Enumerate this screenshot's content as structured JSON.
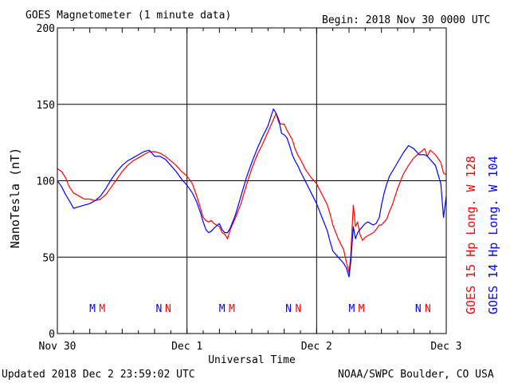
{
  "chart_data": {
    "type": "line",
    "title": "GOES Magnetometer (1 minute data)",
    "begin_label": "Begin:  2018 Nov 30 0000 UTC",
    "ylabel": "NanoTesla (nT)",
    "xlabel": "Universal Time",
    "ylim": [
      0,
      200
    ],
    "y_ticks": [
      0,
      50,
      100,
      150,
      200
    ],
    "xlim_hours": [
      0,
      72
    ],
    "x_ticks": [
      {
        "hour": 0,
        "label": "Nov 30"
      },
      {
        "hour": 24,
        "label": "Dec 1"
      },
      {
        "hour": 48,
        "label": "Dec 2"
      },
      {
        "hour": 72,
        "label": "Dec 3"
      }
    ],
    "grid": true,
    "series": [
      {
        "name": "GOES 15 Hp  Long. W 128",
        "color": "#ff0000",
        "points": [
          [
            0,
            108
          ],
          [
            0.8,
            106
          ],
          [
            1.5,
            102
          ],
          [
            2.2,
            96
          ],
          [
            3,
            92
          ],
          [
            4,
            90
          ],
          [
            5,
            88
          ],
          [
            6,
            88
          ],
          [
            7,
            87
          ],
          [
            8,
            88
          ],
          [
            9,
            91
          ],
          [
            10,
            96
          ],
          [
            11,
            101
          ],
          [
            12,
            106
          ],
          [
            13,
            110
          ],
          [
            14,
            113
          ],
          [
            15,
            115
          ],
          [
            16,
            117
          ],
          [
            17,
            119
          ],
          [
            18,
            119
          ],
          [
            19,
            118
          ],
          [
            20,
            116
          ],
          [
            21,
            113
          ],
          [
            22,
            110
          ],
          [
            23,
            106
          ],
          [
            24,
            103
          ],
          [
            25,
            98
          ],
          [
            25.8,
            90
          ],
          [
            26.5,
            82
          ],
          [
            27,
            76
          ],
          [
            27.5,
            74
          ],
          [
            28,
            73
          ],
          [
            28.5,
            74
          ],
          [
            29,
            72
          ],
          [
            30,
            70
          ],
          [
            30.5,
            66
          ],
          [
            31,
            65
          ],
          [
            31.5,
            62
          ],
          [
            32,
            68
          ],
          [
            33,
            76
          ],
          [
            34,
            85
          ],
          [
            35,
            97
          ],
          [
            36,
            108
          ],
          [
            37,
            117
          ],
          [
            38,
            124
          ],
          [
            39,
            132
          ],
          [
            40,
            140
          ],
          [
            40.5,
            144
          ],
          [
            41,
            138
          ],
          [
            41.5,
            137
          ],
          [
            42,
            137
          ],
          [
            42.5,
            133
          ],
          [
            43,
            130
          ],
          [
            43.5,
            127
          ],
          [
            44,
            121
          ],
          [
            44.5,
            117
          ],
          [
            45,
            114
          ],
          [
            46,
            107
          ],
          [
            47,
            102
          ],
          [
            48,
            98
          ],
          [
            49,
            91
          ],
          [
            50,
            84
          ],
          [
            50.5,
            78
          ],
          [
            51,
            71
          ],
          [
            52,
            62
          ],
          [
            53,
            55
          ],
          [
            53.5,
            47
          ],
          [
            54,
            40
          ],
          [
            54.3,
            50
          ],
          [
            54.8,
            84
          ],
          [
            55.2,
            70
          ],
          [
            55.6,
            73
          ],
          [
            56,
            65
          ],
          [
            56.5,
            61
          ],
          [
            57,
            63
          ],
          [
            57.5,
            64
          ],
          [
            58,
            65
          ],
          [
            58.5,
            66
          ],
          [
            59,
            68
          ],
          [
            59.6,
            71
          ],
          [
            60,
            71
          ],
          [
            60.5,
            73
          ],
          [
            61,
            75
          ],
          [
            61.5,
            80
          ],
          [
            62,
            84
          ],
          [
            63,
            95
          ],
          [
            64,
            104
          ],
          [
            65,
            110
          ],
          [
            66,
            115
          ],
          [
            67,
            118
          ],
          [
            68,
            121
          ],
          [
            68.5,
            116
          ],
          [
            69,
            120
          ],
          [
            70,
            117
          ],
          [
            71,
            112
          ],
          [
            71.5,
            105
          ],
          [
            72,
            104
          ]
        ]
      },
      {
        "name": "GOES 14 Hp  Long. W 104",
        "color": "#0000ff",
        "points": [
          [
            0,
            100
          ],
          [
            0.8,
            96
          ],
          [
            1.5,
            91
          ],
          [
            2.2,
            87
          ],
          [
            3,
            82
          ],
          [
            4,
            83
          ],
          [
            5,
            84
          ],
          [
            6,
            85
          ],
          [
            7,
            87
          ],
          [
            8,
            90
          ],
          [
            9,
            95
          ],
          [
            10,
            101
          ],
          [
            11,
            106
          ],
          [
            12,
            110
          ],
          [
            13,
            113
          ],
          [
            14,
            115
          ],
          [
            15,
            117
          ],
          [
            16,
            119
          ],
          [
            17,
            120
          ],
          [
            18,
            116
          ],
          [
            19,
            116
          ],
          [
            20,
            114
          ],
          [
            21,
            110
          ],
          [
            22,
            106
          ],
          [
            23,
            101
          ],
          [
            24,
            97
          ],
          [
            25,
            92
          ],
          [
            25.8,
            86
          ],
          [
            26.5,
            79
          ],
          [
            27,
            73
          ],
          [
            27.5,
            68
          ],
          [
            28,
            66
          ],
          [
            28.5,
            67
          ],
          [
            29,
            69
          ],
          [
            30,
            72
          ],
          [
            30.5,
            68
          ],
          [
            31,
            66
          ],
          [
            31.5,
            66
          ],
          [
            32,
            69
          ],
          [
            33,
            78
          ],
          [
            34,
            90
          ],
          [
            35,
            102
          ],
          [
            36,
            112
          ],
          [
            37,
            121
          ],
          [
            38,
            129
          ],
          [
            39,
            136
          ],
          [
            40,
            147
          ],
          [
            40.5,
            144
          ],
          [
            41,
            140
          ],
          [
            41.5,
            131
          ],
          [
            42,
            130
          ],
          [
            42.5,
            128
          ],
          [
            43,
            123
          ],
          [
            43.5,
            117
          ],
          [
            44,
            113
          ],
          [
            44.5,
            110
          ],
          [
            45,
            106
          ],
          [
            46,
            99
          ],
          [
            47,
            92
          ],
          [
            48,
            85
          ],
          [
            49,
            76
          ],
          [
            50,
            67
          ],
          [
            50.5,
            60
          ],
          [
            51,
            54
          ],
          [
            52,
            50
          ],
          [
            53,
            46
          ],
          [
            53.5,
            43
          ],
          [
            54,
            37
          ],
          [
            54.3,
            46
          ],
          [
            54.8,
            70
          ],
          [
            55.2,
            62
          ],
          [
            55.6,
            66
          ],
          [
            56,
            68
          ],
          [
            56.5,
            70
          ],
          [
            57,
            72
          ],
          [
            57.5,
            73
          ],
          [
            58,
            72
          ],
          [
            58.5,
            71
          ],
          [
            59,
            72
          ],
          [
            59.6,
            76
          ],
          [
            60,
            84
          ],
          [
            60.5,
            92
          ],
          [
            61,
            98
          ],
          [
            61.5,
            103
          ],
          [
            62,
            106
          ],
          [
            63,
            112
          ],
          [
            64,
            118
          ],
          [
            65,
            123
          ],
          [
            66,
            121
          ],
          [
            67,
            117
          ],
          [
            68,
            117
          ],
          [
            68.5,
            116
          ],
          [
            69,
            114
          ],
          [
            70,
            110
          ],
          [
            71,
            98
          ],
          [
            71.5,
            76
          ],
          [
            72,
            90
          ]
        ]
      }
    ],
    "mn_markers": [
      {
        "hour": 6.5,
        "letter": "M",
        "color": "#0000ff"
      },
      {
        "hour": 8.3,
        "letter": "M",
        "color": "#ff0000"
      },
      {
        "hour": 18.8,
        "letter": "N",
        "color": "#0000ff"
      },
      {
        "hour": 20.5,
        "letter": "N",
        "color": "#ff0000"
      },
      {
        "hour": 30.5,
        "letter": "M",
        "color": "#0000ff"
      },
      {
        "hour": 32.3,
        "letter": "M",
        "color": "#ff0000"
      },
      {
        "hour": 42.8,
        "letter": "N",
        "color": "#0000ff"
      },
      {
        "hour": 44.6,
        "letter": "N",
        "color": "#ff0000"
      },
      {
        "hour": 54.5,
        "letter": "M",
        "color": "#0000ff"
      },
      {
        "hour": 56.3,
        "letter": "M",
        "color": "#ff0000"
      },
      {
        "hour": 66.8,
        "letter": "N",
        "color": "#0000ff"
      },
      {
        "hour": 68.6,
        "letter": "N",
        "color": "#ff0000"
      }
    ]
  },
  "footer": {
    "updated": "Updated 2018 Dec  2 23:59:02 UTC",
    "credit": "NOAA/SWPC Boulder, CO USA"
  }
}
